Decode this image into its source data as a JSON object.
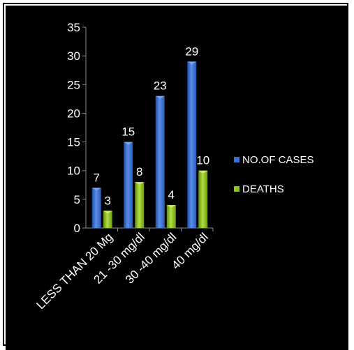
{
  "chart_data": {
    "type": "bar",
    "title": "",
    "xlabel": "",
    "ylabel": "",
    "ylim": [
      0,
      35
    ],
    "yticks": [
      0,
      5,
      10,
      15,
      20,
      25,
      30,
      35
    ],
    "grid": false,
    "legend_position": "right",
    "categories": [
      "LESS THAN 20 Mg",
      "21 -30 mg/dl",
      "30 -40 mg/dl",
      "40 mg/dl"
    ],
    "series": [
      {
        "name": "NO.OF CASES",
        "values": [
          7,
          15,
          23,
          29
        ],
        "color": "#3a6fd2"
      },
      {
        "name": "DEATHS",
        "values": [
          3,
          8,
          4,
          10
        ],
        "color": "#8fc21f"
      }
    ],
    "background": "#000000",
    "text_color": "#ffffff"
  }
}
